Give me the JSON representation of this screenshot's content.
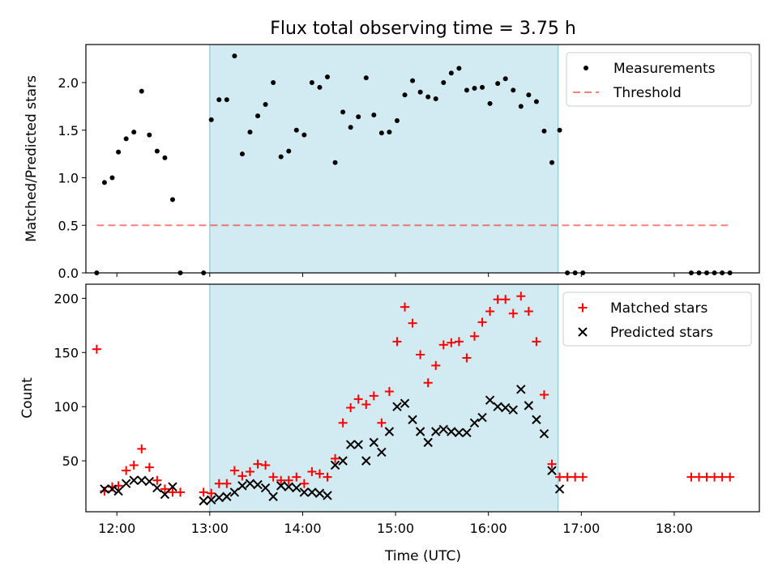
{
  "figure": {
    "title": "Flux total observing time = 3.75 h",
    "xlabel": "Time (UTC)"
  },
  "colors": {
    "shade": "#add8e6",
    "threshold": "#ff0000",
    "matched": "#ff0000",
    "predicted": "#000000",
    "points": "#000000"
  },
  "chart_data": [
    {
      "type": "scatter",
      "ylabel": "Matched/Predicted stars",
      "xlim": [
        "11:40",
        "18:55"
      ],
      "ylim": [
        0,
        2.4
      ],
      "yticks": [
        "0.0",
        "0.5",
        "1.0",
        "1.5",
        "2.0"
      ],
      "xticks": [
        "12:00",
        "13:00",
        "14:00",
        "15:00",
        "16:00",
        "17:00",
        "18:00"
      ],
      "shaded_interval": [
        "13:00",
        "16:45"
      ],
      "legend": {
        "placement": "top-right",
        "entries": [
          "Measurements",
          "Threshold"
        ]
      },
      "threshold": {
        "name": "Threshold",
        "y": 0.5,
        "x": [
          "11:47",
          "18:35"
        ]
      },
      "series": [
        {
          "name": "Measurements",
          "points": [
            [
              "11:47",
              0.0
            ],
            [
              "11:52",
              0.95
            ],
            [
              "11:57",
              1.0
            ],
            [
              "12:01",
              1.27
            ],
            [
              "12:06",
              1.41
            ],
            [
              "12:11",
              1.48
            ],
            [
              "12:16",
              1.91
            ],
            [
              "12:21",
              1.45
            ],
            [
              "12:26",
              1.28
            ],
            [
              "12:31",
              1.21
            ],
            [
              "12:36",
              0.77
            ],
            [
              "12:41",
              0.0
            ],
            [
              "12:56",
              0.0
            ],
            [
              "13:01",
              1.61
            ],
            [
              "13:06",
              1.82
            ],
            [
              "13:11",
              1.82
            ],
            [
              "13:16",
              2.28
            ],
            [
              "13:21",
              1.25
            ],
            [
              "13:26",
              1.48
            ],
            [
              "13:31",
              1.65
            ],
            [
              "13:36",
              1.77
            ],
            [
              "13:41",
              2.0
            ],
            [
              "13:46",
              1.22
            ],
            [
              "13:51",
              1.28
            ],
            [
              "13:56",
              1.5
            ],
            [
              "14:01",
              1.45
            ],
            [
              "14:06",
              2.0
            ],
            [
              "14:11",
              1.95
            ],
            [
              "14:16",
              2.06
            ],
            [
              "14:21",
              1.16
            ],
            [
              "14:26",
              1.69
            ],
            [
              "14:31",
              1.53
            ],
            [
              "14:36",
              1.64
            ],
            [
              "14:41",
              2.05
            ],
            [
              "14:46",
              1.66
            ],
            [
              "14:51",
              1.47
            ],
            [
              "14:56",
              1.48
            ],
            [
              "15:01",
              1.6
            ],
            [
              "15:06",
              1.87
            ],
            [
              "15:11",
              2.02
            ],
            [
              "15:16",
              1.9
            ],
            [
              "15:21",
              1.85
            ],
            [
              "15:26",
              1.83
            ],
            [
              "15:31",
              2.0
            ],
            [
              "15:36",
              2.1
            ],
            [
              "15:41",
              2.15
            ],
            [
              "15:46",
              1.92
            ],
            [
              "15:51",
              1.94
            ],
            [
              "15:56",
              1.95
            ],
            [
              "16:01",
              1.78
            ],
            [
              "16:06",
              1.99
            ],
            [
              "16:11",
              2.04
            ],
            [
              "16:16",
              1.92
            ],
            [
              "16:21",
              1.75
            ],
            [
              "16:26",
              1.87
            ],
            [
              "16:31",
              1.8
            ],
            [
              "16:36",
              1.49
            ],
            [
              "16:41",
              1.16
            ],
            [
              "16:46",
              1.5
            ],
            [
              "16:51",
              0.0
            ],
            [
              "16:56",
              0.0
            ],
            [
              "17:01",
              0.0
            ],
            [
              "18:11",
              0.0
            ],
            [
              "18:16",
              0.0
            ],
            [
              "18:21",
              0.0
            ],
            [
              "18:26",
              0.0
            ],
            [
              "18:31",
              0.0
            ],
            [
              "18:36",
              0.0
            ]
          ]
        }
      ]
    },
    {
      "type": "scatter",
      "ylabel": "Count",
      "xlabel": "Time (UTC)",
      "xlim": [
        "11:40",
        "18:55"
      ],
      "ylim": [
        3,
        213
      ],
      "yticks": [
        "50",
        "100",
        "150",
        "200"
      ],
      "xticks": [
        "12:00",
        "13:00",
        "14:00",
        "15:00",
        "16:00",
        "17:00",
        "18:00"
      ],
      "shaded_interval": [
        "13:00",
        "16:45"
      ],
      "legend": {
        "placement": "top-right",
        "entries": [
          "Matched stars",
          "Predicted stars"
        ]
      },
      "series": [
        {
          "name": "Matched stars",
          "marker": "+",
          "points": [
            [
              "11:47",
              153
            ],
            [
              "11:52",
              22
            ],
            [
              "11:57",
              26
            ],
            [
              "12:01",
              27
            ],
            [
              "12:06",
              41
            ],
            [
              "12:11",
              46
            ],
            [
              "12:16",
              61
            ],
            [
              "12:21",
              44
            ],
            [
              "12:26",
              32
            ],
            [
              "12:31",
              24
            ],
            [
              "12:36",
              21
            ],
            [
              "12:41",
              21
            ],
            [
              "12:56",
              21
            ],
            [
              "13:01",
              20
            ],
            [
              "13:06",
              29
            ],
            [
              "13:11",
              29
            ],
            [
              "13:16",
              41
            ],
            [
              "13:21",
              36
            ],
            [
              "13:26",
              40
            ],
            [
              "13:31",
              47
            ],
            [
              "13:36",
              46
            ],
            [
              "13:41",
              35
            ],
            [
              "13:46",
              32
            ],
            [
              "13:51",
              32
            ],
            [
              "13:56",
              35
            ],
            [
              "14:01",
              29
            ],
            [
              "14:06",
              40
            ],
            [
              "14:11",
              38
            ],
            [
              "14:16",
              35
            ],
            [
              "14:21",
              52
            ],
            [
              "14:26",
              85
            ],
            [
              "14:31",
              99
            ],
            [
              "14:36",
              107
            ],
            [
              "14:41",
              102
            ],
            [
              "14:46",
              110
            ],
            [
              "14:51",
              85
            ],
            [
              "14:56",
              114
            ],
            [
              "15:01",
              160
            ],
            [
              "15:06",
              192
            ],
            [
              "15:11",
              177
            ],
            [
              "15:16",
              148
            ],
            [
              "15:21",
              122
            ],
            [
              "15:26",
              138
            ],
            [
              "15:31",
              157
            ],
            [
              "15:36",
              159
            ],
            [
              "15:41",
              160
            ],
            [
              "15:46",
              145
            ],
            [
              "15:51",
              165
            ],
            [
              "15:56",
              178
            ],
            [
              "16:01",
              188
            ],
            [
              "16:06",
              199
            ],
            [
              "16:11",
              199
            ],
            [
              "16:16",
              186
            ],
            [
              "16:21",
              202
            ],
            [
              "16:26",
              188
            ],
            [
              "16:31",
              160
            ],
            [
              "16:36",
              111
            ],
            [
              "16:41",
              47
            ],
            [
              "16:46",
              35
            ],
            [
              "16:51",
              35
            ],
            [
              "16:56",
              35
            ],
            [
              "17:01",
              35
            ],
            [
              "18:11",
              35
            ],
            [
              "18:16",
              35
            ],
            [
              "18:21",
              35
            ],
            [
              "18:26",
              35
            ],
            [
              "18:31",
              35
            ],
            [
              "18:36",
              35
            ]
          ]
        },
        {
          "name": "Predicted stars",
          "marker": "x",
          "points": [
            [
              "11:52",
              24
            ],
            [
              "11:57",
              24
            ],
            [
              "12:01",
              22
            ],
            [
              "12:06",
              29
            ],
            [
              "12:11",
              32
            ],
            [
              "12:16",
              32
            ],
            [
              "12:21",
              31
            ],
            [
              "12:26",
              25
            ],
            [
              "12:31",
              19
            ],
            [
              "12:36",
              26
            ],
            [
              "12:56",
              13
            ],
            [
              "13:01",
              14
            ],
            [
              "13:06",
              16
            ],
            [
              "13:11",
              17
            ],
            [
              "13:16",
              21
            ],
            [
              "13:21",
              27
            ],
            [
              "13:26",
              29
            ],
            [
              "13:31",
              28
            ],
            [
              "13:36",
              25
            ],
            [
              "13:41",
              17
            ],
            [
              "13:46",
              27
            ],
            [
              "13:51",
              26
            ],
            [
              "13:56",
              25
            ],
            [
              "14:01",
              21
            ],
            [
              "14:06",
              21
            ],
            [
              "14:11",
              20
            ],
            [
              "14:16",
              18
            ],
            [
              "14:21",
              46
            ],
            [
              "14:26",
              50
            ],
            [
              "14:31",
              65
            ],
            [
              "14:36",
              65
            ],
            [
              "14:41",
              50
            ],
            [
              "14:46",
              67
            ],
            [
              "14:51",
              58
            ],
            [
              "14:56",
              77
            ],
            [
              "15:01",
              100
            ],
            [
              "15:06",
              103
            ],
            [
              "15:11",
              88
            ],
            [
              "15:16",
              77
            ],
            [
              "15:21",
              67
            ],
            [
              "15:26",
              77
            ],
            [
              "15:31",
              79
            ],
            [
              "15:36",
              77
            ],
            [
              "15:41",
              76
            ],
            [
              "15:46",
              76
            ],
            [
              "15:51",
              85
            ],
            [
              "15:56",
              90
            ],
            [
              "16:01",
              106
            ],
            [
              "16:06",
              100
            ],
            [
              "16:11",
              99
            ],
            [
              "16:16",
              97
            ],
            [
              "16:21",
              116
            ],
            [
              "16:26",
              101
            ],
            [
              "16:31",
              88
            ],
            [
              "16:36",
              75
            ],
            [
              "16:41",
              41
            ],
            [
              "16:46",
              24
            ]
          ]
        }
      ]
    }
  ]
}
